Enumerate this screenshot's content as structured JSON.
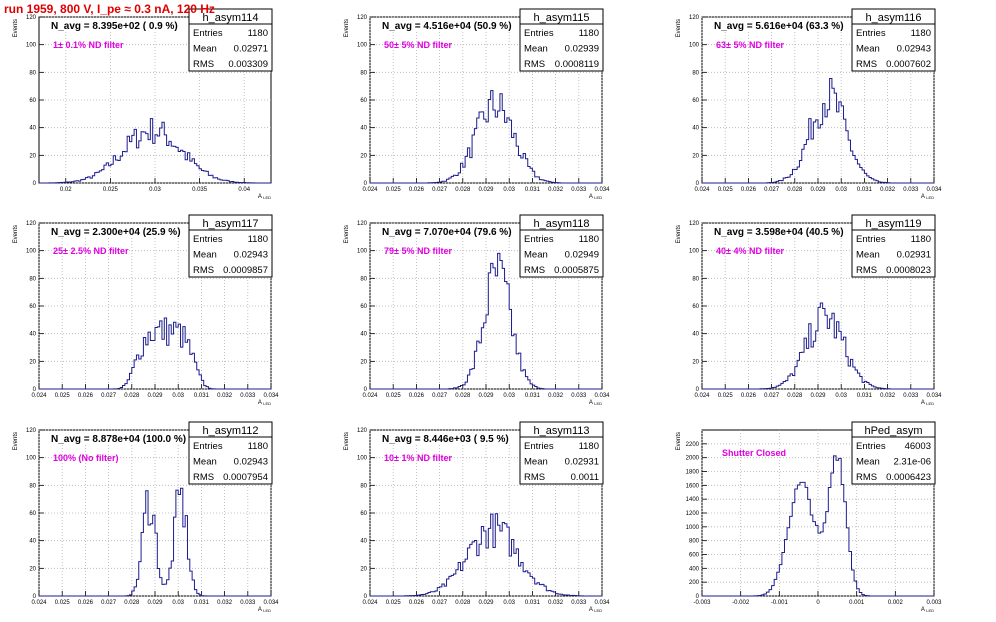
{
  "header": {
    "title": "run 1959,   800 V, I_pe ≈ 0.3 nA, 120 Hz"
  },
  "stats_labels": {
    "entries": "Entries",
    "mean": "Mean",
    "rms": "RMS"
  },
  "ylabel": "Events",
  "xlabel": "A",
  "xlabel_sub": "LED",
  "colors": {
    "hist": "#1c1c8f",
    "filter_text": "#e000e0",
    "title_text": "#e00000",
    "grid": "#b4b4b4"
  },
  "chart_data": [
    {
      "type": "histogram",
      "name": "h_asym114",
      "navg_text": "N_avg = 8.395e+02 ( 0.9 %)",
      "filter_text": "1± 0.1% ND filter",
      "stats": {
        "entries": "1180",
        "mean": "0.02971",
        "rms": "0.003309"
      },
      "xlim": [
        0.017,
        0.043
      ],
      "ylim": [
        0,
        120
      ],
      "xticks": [
        "0.02",
        "0.025",
        "0.03",
        "0.035",
        "0.04"
      ],
      "xtick_values": [
        0.02,
        0.025,
        0.03,
        0.035,
        0.04
      ],
      "yticks": [
        "0",
        "20",
        "40",
        "60",
        "80",
        "100",
        "120"
      ],
      "ytick_values": [
        0,
        20,
        40,
        60,
        80,
        100,
        120
      ],
      "mean": 0.02971,
      "sigma": 0.003309,
      "peak": 38,
      "shape": "gauss"
    },
    {
      "type": "histogram",
      "name": "h_asym115",
      "navg_text": "N_avg = 4.516e+04 (50.9 %)",
      "filter_text": "50± 5% ND filter",
      "stats": {
        "entries": "1180",
        "mean": "0.02939",
        "rms": "0.0008119"
      },
      "xlim": [
        0.024,
        0.034
      ],
      "ylim": [
        0,
        120
      ],
      "xticks": [
        "0.024",
        "0.025",
        "0.026",
        "0.027",
        "0.028",
        "0.029",
        "0.03",
        "0.031",
        "0.032",
        "0.033",
        "0.034"
      ],
      "xtick_values": [
        0.024,
        0.025,
        0.026,
        0.027,
        0.028,
        0.029,
        0.03,
        0.031,
        0.032,
        0.033,
        0.034
      ],
      "yticks": [
        "0",
        "20",
        "40",
        "60",
        "80",
        "100",
        "120"
      ],
      "ytick_values": [
        0,
        20,
        40,
        60,
        80,
        100,
        120
      ],
      "mean": 0.02939,
      "sigma": 0.0008119,
      "peak": 56,
      "shape": "gauss"
    },
    {
      "type": "histogram",
      "name": "h_asym116",
      "navg_text": "N_avg = 5.616e+04 (63.3 %)",
      "filter_text": "63± 5% ND filter",
      "stats": {
        "entries": "1180",
        "mean": "0.02943",
        "rms": "0.0007602"
      },
      "xlim": [
        0.024,
        0.034
      ],
      "ylim": [
        0,
        120
      ],
      "xticks": [
        "0.024",
        "0.025",
        "0.026",
        "0.027",
        "0.028",
        "0.029",
        "0.03",
        "0.031",
        "0.032",
        "0.033",
        "0.034"
      ],
      "xtick_values": [
        0.024,
        0.025,
        0.026,
        0.027,
        0.028,
        0.029,
        0.03,
        0.031,
        0.032,
        0.033,
        0.034
      ],
      "yticks": [
        "0",
        "20",
        "40",
        "60",
        "80",
        "100",
        "120"
      ],
      "ytick_values": [
        0,
        20,
        40,
        60,
        80,
        100,
        120
      ],
      "mean": 0.02943,
      "sigma": 0.0007602,
      "peak": 62,
      "shape": "gauss"
    },
    {
      "type": "histogram",
      "name": "h_asym117",
      "navg_text": "N_avg = 2.300e+04 (25.9 %)",
      "filter_text": "25± 2.5% ND filter",
      "stats": {
        "entries": "1180",
        "mean": "0.02943",
        "rms": "0.0009857"
      },
      "xlim": [
        0.024,
        0.034
      ],
      "ylim": [
        0,
        120
      ],
      "xticks": [
        "0.024",
        "0.025",
        "0.026",
        "0.027",
        "0.028",
        "0.029",
        "0.03",
        "0.031",
        "0.032",
        "0.033",
        "0.034"
      ],
      "xtick_values": [
        0.024,
        0.025,
        0.026,
        0.027,
        0.028,
        0.029,
        0.03,
        0.031,
        0.032,
        0.033,
        0.034
      ],
      "yticks": [
        "0",
        "20",
        "40",
        "60",
        "80",
        "100",
        "120"
      ],
      "ytick_values": [
        0,
        20,
        40,
        60,
        80,
        100,
        120
      ],
      "mean": 0.02943,
      "sigma": 0.0009857,
      "peak": 42,
      "shape": "flat"
    },
    {
      "type": "histogram",
      "name": "h_asym118",
      "navg_text": "N_avg = 7.070e+04 (79.6 %)",
      "filter_text": "79± 5% ND filter",
      "stats": {
        "entries": "1180",
        "mean": "0.02949",
        "rms": "0.0005875"
      },
      "xlim": [
        0.024,
        0.034
      ],
      "ylim": [
        0,
        120
      ],
      "xticks": [
        "0.024",
        "0.025",
        "0.026",
        "0.027",
        "0.028",
        "0.029",
        "0.03",
        "0.031",
        "0.032",
        "0.033",
        "0.034"
      ],
      "xtick_values": [
        0.024,
        0.025,
        0.026,
        0.027,
        0.028,
        0.029,
        0.03,
        0.031,
        0.032,
        0.033,
        0.034
      ],
      "yticks": [
        "0",
        "20",
        "40",
        "60",
        "80",
        "100",
        "120"
      ],
      "ytick_values": [
        0,
        20,
        40,
        60,
        80,
        100,
        120
      ],
      "mean": 0.02949,
      "sigma": 0.0005875,
      "peak": 82,
      "shape": "gauss"
    },
    {
      "type": "histogram",
      "name": "h_asym119",
      "navg_text": "N_avg = 3.598e+04 (40.5 %)",
      "filter_text": "40± 4% ND filter",
      "stats": {
        "entries": "1180",
        "mean": "0.02931",
        "rms": "0.0008023"
      },
      "xlim": [
        0.024,
        0.034
      ],
      "ylim": [
        0,
        120
      ],
      "xticks": [
        "0.024",
        "0.025",
        "0.026",
        "0.027",
        "0.028",
        "0.029",
        "0.03",
        "0.031",
        "0.032",
        "0.033",
        "0.034"
      ],
      "xtick_values": [
        0.024,
        0.025,
        0.026,
        0.027,
        0.028,
        0.029,
        0.03,
        0.031,
        0.032,
        0.033,
        0.034
      ],
      "yticks": [
        "0",
        "20",
        "40",
        "60",
        "80",
        "100",
        "120"
      ],
      "ytick_values": [
        0,
        20,
        40,
        60,
        80,
        100,
        120
      ],
      "mean": 0.02931,
      "sigma": 0.0008023,
      "peak": 52,
      "shape": "gauss"
    },
    {
      "type": "histogram",
      "name": "h_asym112",
      "navg_text": "N_avg = 8.878e+04 (100.0 %)",
      "filter_text": "100% (No filter)",
      "stats": {
        "entries": "1180",
        "mean": "0.02943",
        "rms": "0.0007954"
      },
      "xlim": [
        0.024,
        0.034
      ],
      "ylim": [
        0,
        120
      ],
      "xticks": [
        "0.024",
        "0.025",
        "0.026",
        "0.027",
        "0.028",
        "0.029",
        "0.03",
        "0.031",
        "0.032",
        "0.033",
        "0.034"
      ],
      "xtick_values": [
        0.024,
        0.025,
        0.026,
        0.027,
        0.028,
        0.029,
        0.03,
        0.031,
        0.032,
        0.033,
        0.034
      ],
      "yticks": [
        "0",
        "20",
        "40",
        "60",
        "80",
        "100",
        "120"
      ],
      "ytick_values": [
        0,
        20,
        40,
        60,
        80,
        100,
        120
      ],
      "mean": 0.02943,
      "sigma": 0.0007954,
      "peak": 74,
      "shape": "double"
    },
    {
      "type": "histogram",
      "name": "h_asym113",
      "navg_text": "N_avg = 8.446e+03 ( 9.5 %)",
      "filter_text": "10± 1% ND filter",
      "stats": {
        "entries": "1180",
        "mean": "0.02931",
        "rms": "0.0011"
      },
      "xlim": [
        0.024,
        0.034
      ],
      "ylim": [
        0,
        120
      ],
      "xticks": [
        "0.024",
        "0.025",
        "0.026",
        "0.027",
        "0.028",
        "0.029",
        "0.03",
        "0.031",
        "0.032",
        "0.033",
        "0.034"
      ],
      "xtick_values": [
        0.024,
        0.025,
        0.026,
        0.027,
        0.028,
        0.029,
        0.03,
        0.031,
        0.032,
        0.033,
        0.034
      ],
      "yticks": [
        "0",
        "20",
        "40",
        "60",
        "80",
        "100",
        "120"
      ],
      "ytick_values": [
        0,
        20,
        40,
        60,
        80,
        100,
        120
      ],
      "mean": 0.02931,
      "sigma": 0.0011,
      "peak": 48,
      "shape": "gauss"
    },
    {
      "type": "histogram",
      "name": "hPed_asym",
      "navg_text": "",
      "filter_text": "Shutter Closed",
      "stats": {
        "entries": "46003",
        "mean": "2.31e-06",
        "rms": "0.0006423"
      },
      "xlim": [
        -0.003,
        0.003
      ],
      "ylim": [
        0,
        2400
      ],
      "xticks": [
        "-0.003",
        "-0.002",
        "-0.001",
        "0",
        "0.001",
        "0.002",
        "0.003"
      ],
      "xtick_values": [
        -0.003,
        -0.002,
        -0.001,
        0,
        0.001,
        0.002,
        0.003
      ],
      "yticks": [
        "0",
        "200",
        "400",
        "600",
        "800",
        "1000",
        "1200",
        "1400",
        "1600",
        "1800",
        "2000",
        "2200"
      ],
      "ytick_values": [
        0,
        200,
        400,
        600,
        800,
        1000,
        1200,
        1400,
        1600,
        1800,
        2000,
        2200
      ],
      "mean": 0.0,
      "sigma": 0.0006423,
      "peak": 2150,
      "shape": "pedestal"
    }
  ]
}
